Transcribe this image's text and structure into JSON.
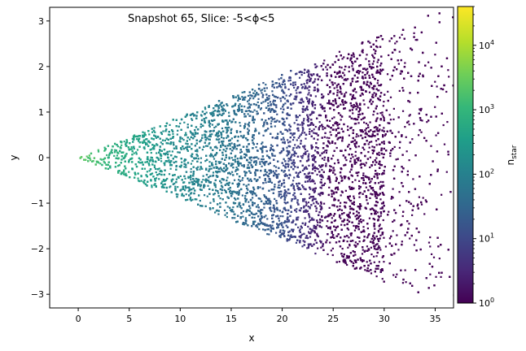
{
  "chart_data": {
    "type": "scatter",
    "title": "Snapshot 65, Slice: -5<ϕ<5",
    "xlabel": "x",
    "ylabel": "y",
    "colorbar_label": "n_star",
    "colorbar_label_main": "n",
    "colorbar_label_sub": "star",
    "xlim": [
      -2.8,
      36.8
    ],
    "ylim": [
      -3.3,
      3.3
    ],
    "xticks": [
      0,
      5,
      10,
      15,
      20,
      25,
      30,
      35
    ],
    "xtick_labels": [
      "0",
      "5",
      "10",
      "15",
      "20",
      "25",
      "30",
      "35"
    ],
    "yticks": [
      -3,
      -2,
      -1,
      0,
      1,
      2,
      3
    ],
    "ytick_labels": [
      "−3",
      "−2",
      "−1",
      "0",
      "1",
      "2",
      "3"
    ],
    "colorbar": {
      "scale": "log",
      "range": [
        1,
        40000
      ],
      "colormap": "viridis",
      "ticks": [
        1,
        10,
        100,
        1000,
        10000
      ],
      "tick_bases": [
        "10",
        "10",
        "10",
        "10",
        "10"
      ],
      "tick_exponents": [
        "0",
        "1",
        "2",
        "3",
        "4"
      ]
    },
    "wedge": {
      "apex": [
        0,
        0
      ],
      "x_extent": 30,
      "half_opening_slope": 0.087,
      "density_profile": [
        {
          "x": 1,
          "n_star": 2000
        },
        {
          "x": 3,
          "n_star": 900
        },
        {
          "x": 5,
          "n_star": 500
        },
        {
          "x": 10,
          "n_star": 150
        },
        {
          "x": 15,
          "n_star": 60
        },
        {
          "x": 20,
          "n_star": 15
        },
        {
          "x": 22,
          "n_star": 5
        },
        {
          "x": 25,
          "n_star": 1
        },
        {
          "x": 30,
          "n_star": 1
        }
      ]
    },
    "grid": false,
    "legend": "none",
    "colors": {
      "axes": "#000000",
      "background": "#ffffff"
    }
  }
}
